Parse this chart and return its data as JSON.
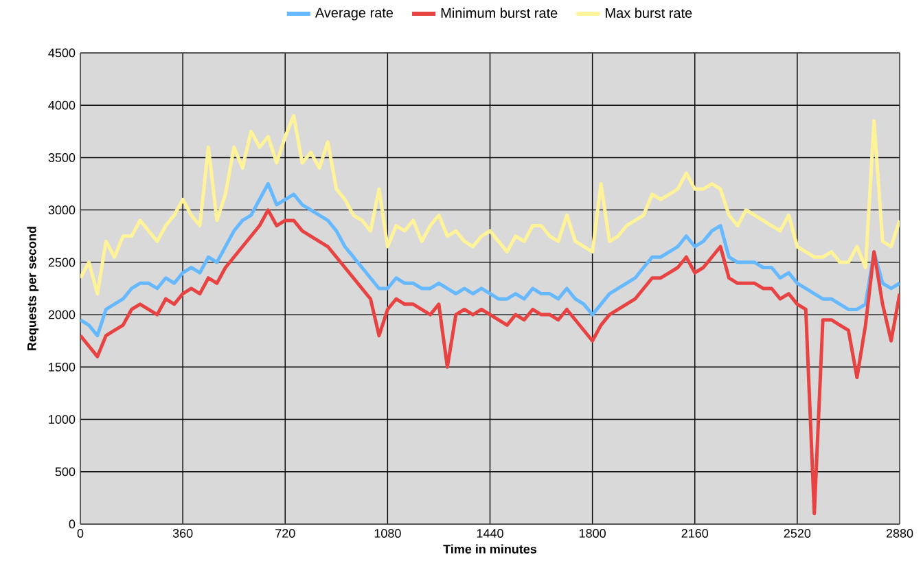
{
  "chart_data": {
    "type": "line",
    "xlabel": "Time in minutes",
    "ylabel": "Requests per second",
    "x": [
      0,
      30,
      60,
      90,
      120,
      150,
      180,
      210,
      240,
      270,
      300,
      330,
      360,
      390,
      420,
      450,
      480,
      510,
      540,
      570,
      600,
      630,
      660,
      690,
      720,
      750,
      780,
      810,
      840,
      870,
      900,
      930,
      960,
      990,
      1020,
      1050,
      1080,
      1110,
      1140,
      1170,
      1200,
      1230,
      1260,
      1290,
      1320,
      1350,
      1380,
      1410,
      1440,
      1470,
      1500,
      1530,
      1560,
      1590,
      1620,
      1650,
      1680,
      1710,
      1740,
      1770,
      1800,
      1830,
      1860,
      1890,
      1920,
      1950,
      1980,
      2010,
      2040,
      2070,
      2100,
      2130,
      2160,
      2190,
      2220,
      2250,
      2280,
      2310,
      2340,
      2370,
      2400,
      2430,
      2460,
      2490,
      2520,
      2550,
      2580,
      2610,
      2640,
      2670,
      2700,
      2730,
      2760,
      2790,
      2820,
      2850,
      2880
    ],
    "series": [
      {
        "name": "Average rate",
        "color": "#66b8ff",
        "values": [
          1950,
          1900,
          1800,
          2050,
          2100,
          2150,
          2250,
          2300,
          2300,
          2250,
          2350,
          2300,
          2400,
          2450,
          2400,
          2550,
          2500,
          2650,
          2800,
          2900,
          2950,
          3100,
          3250,
          3050,
          3100,
          3150,
          3050,
          3000,
          2950,
          2900,
          2800,
          2650,
          2550,
          2450,
          2350,
          2250,
          2250,
          2350,
          2300,
          2300,
          2250,
          2250,
          2300,
          2250,
          2200,
          2250,
          2200,
          2250,
          2200,
          2150,
          2150,
          2200,
          2150,
          2250,
          2200,
          2200,
          2150,
          2250,
          2150,
          2100,
          2000,
          2100,
          2200,
          2250,
          2300,
          2350,
          2450,
          2550,
          2550,
          2600,
          2650,
          2750,
          2650,
          2700,
          2800,
          2850,
          2550,
          2500,
          2500,
          2500,
          2450,
          2450,
          2350,
          2400,
          2300,
          2250,
          2200,
          2150,
          2150,
          2100,
          2050,
          2050,
          2100,
          2600,
          2300,
          2250,
          2300
        ]
      },
      {
        "name": "Minimum burst rate",
        "color": "#e84343",
        "values": [
          1800,
          1700,
          1600,
          1800,
          1850,
          1900,
          2050,
          2100,
          2050,
          2000,
          2150,
          2100,
          2200,
          2250,
          2200,
          2350,
          2300,
          2450,
          2550,
          2650,
          2750,
          2850,
          3000,
          2850,
          2900,
          2900,
          2800,
          2750,
          2700,
          2650,
          2550,
          2450,
          2350,
          2250,
          2150,
          1800,
          2050,
          2150,
          2100,
          2100,
          2050,
          2000,
          2100,
          1500,
          2000,
          2050,
          2000,
          2050,
          2000,
          1950,
          1900,
          2000,
          1950,
          2050,
          2000,
          2000,
          1950,
          2050,
          1950,
          1850,
          1750,
          1900,
          2000,
          2050,
          2100,
          2150,
          2250,
          2350,
          2350,
          2400,
          2450,
          2550,
          2400,
          2450,
          2550,
          2650,
          2350,
          2300,
          2300,
          2300,
          2250,
          2250,
          2150,
          2200,
          2100,
          2050,
          100,
          1950,
          1950,
          1900,
          1850,
          1400,
          1900,
          2600,
          2100,
          1750,
          2200
        ]
      },
      {
        "name": "Max burst rate",
        "color": "#fff39a",
        "values": [
          2350,
          2500,
          2200,
          2700,
          2550,
          2750,
          2750,
          2900,
          2800,
          2700,
          2850,
          2950,
          3100,
          2950,
          2850,
          3600,
          2900,
          3150,
          3600,
          3400,
          3750,
          3600,
          3700,
          3450,
          3700,
          3900,
          3450,
          3550,
          3400,
          3650,
          3200,
          3100,
          2950,
          2900,
          2800,
          3200,
          2650,
          2850,
          2800,
          2900,
          2700,
          2850,
          2950,
          2750,
          2800,
          2700,
          2650,
          2750,
          2800,
          2700,
          2600,
          2750,
          2700,
          2850,
          2850,
          2750,
          2700,
          2950,
          2700,
          2650,
          2600,
          3250,
          2700,
          2750,
          2850,
          2900,
          2950,
          3150,
          3100,
          3150,
          3200,
          3350,
          3200,
          3200,
          3250,
          3200,
          2950,
          2850,
          3000,
          2950,
          2900,
          2850,
          2800,
          2950,
          2650,
          2600,
          2550,
          2550,
          2600,
          2500,
          2500,
          2650,
          2450,
          3850,
          2700,
          2650,
          2900
        ]
      }
    ],
    "xlim": [
      0,
      2880
    ],
    "ylim": [
      0,
      4500
    ],
    "xticks": [
      0,
      360,
      720,
      1080,
      1440,
      1800,
      2160,
      2520,
      2880
    ],
    "yticks": [
      0,
      500,
      1000,
      1500,
      2000,
      2500,
      3000,
      3500,
      4000,
      4500
    ],
    "grid": true,
    "legend": "top",
    "marker": "none",
    "line_style": "solid"
  }
}
